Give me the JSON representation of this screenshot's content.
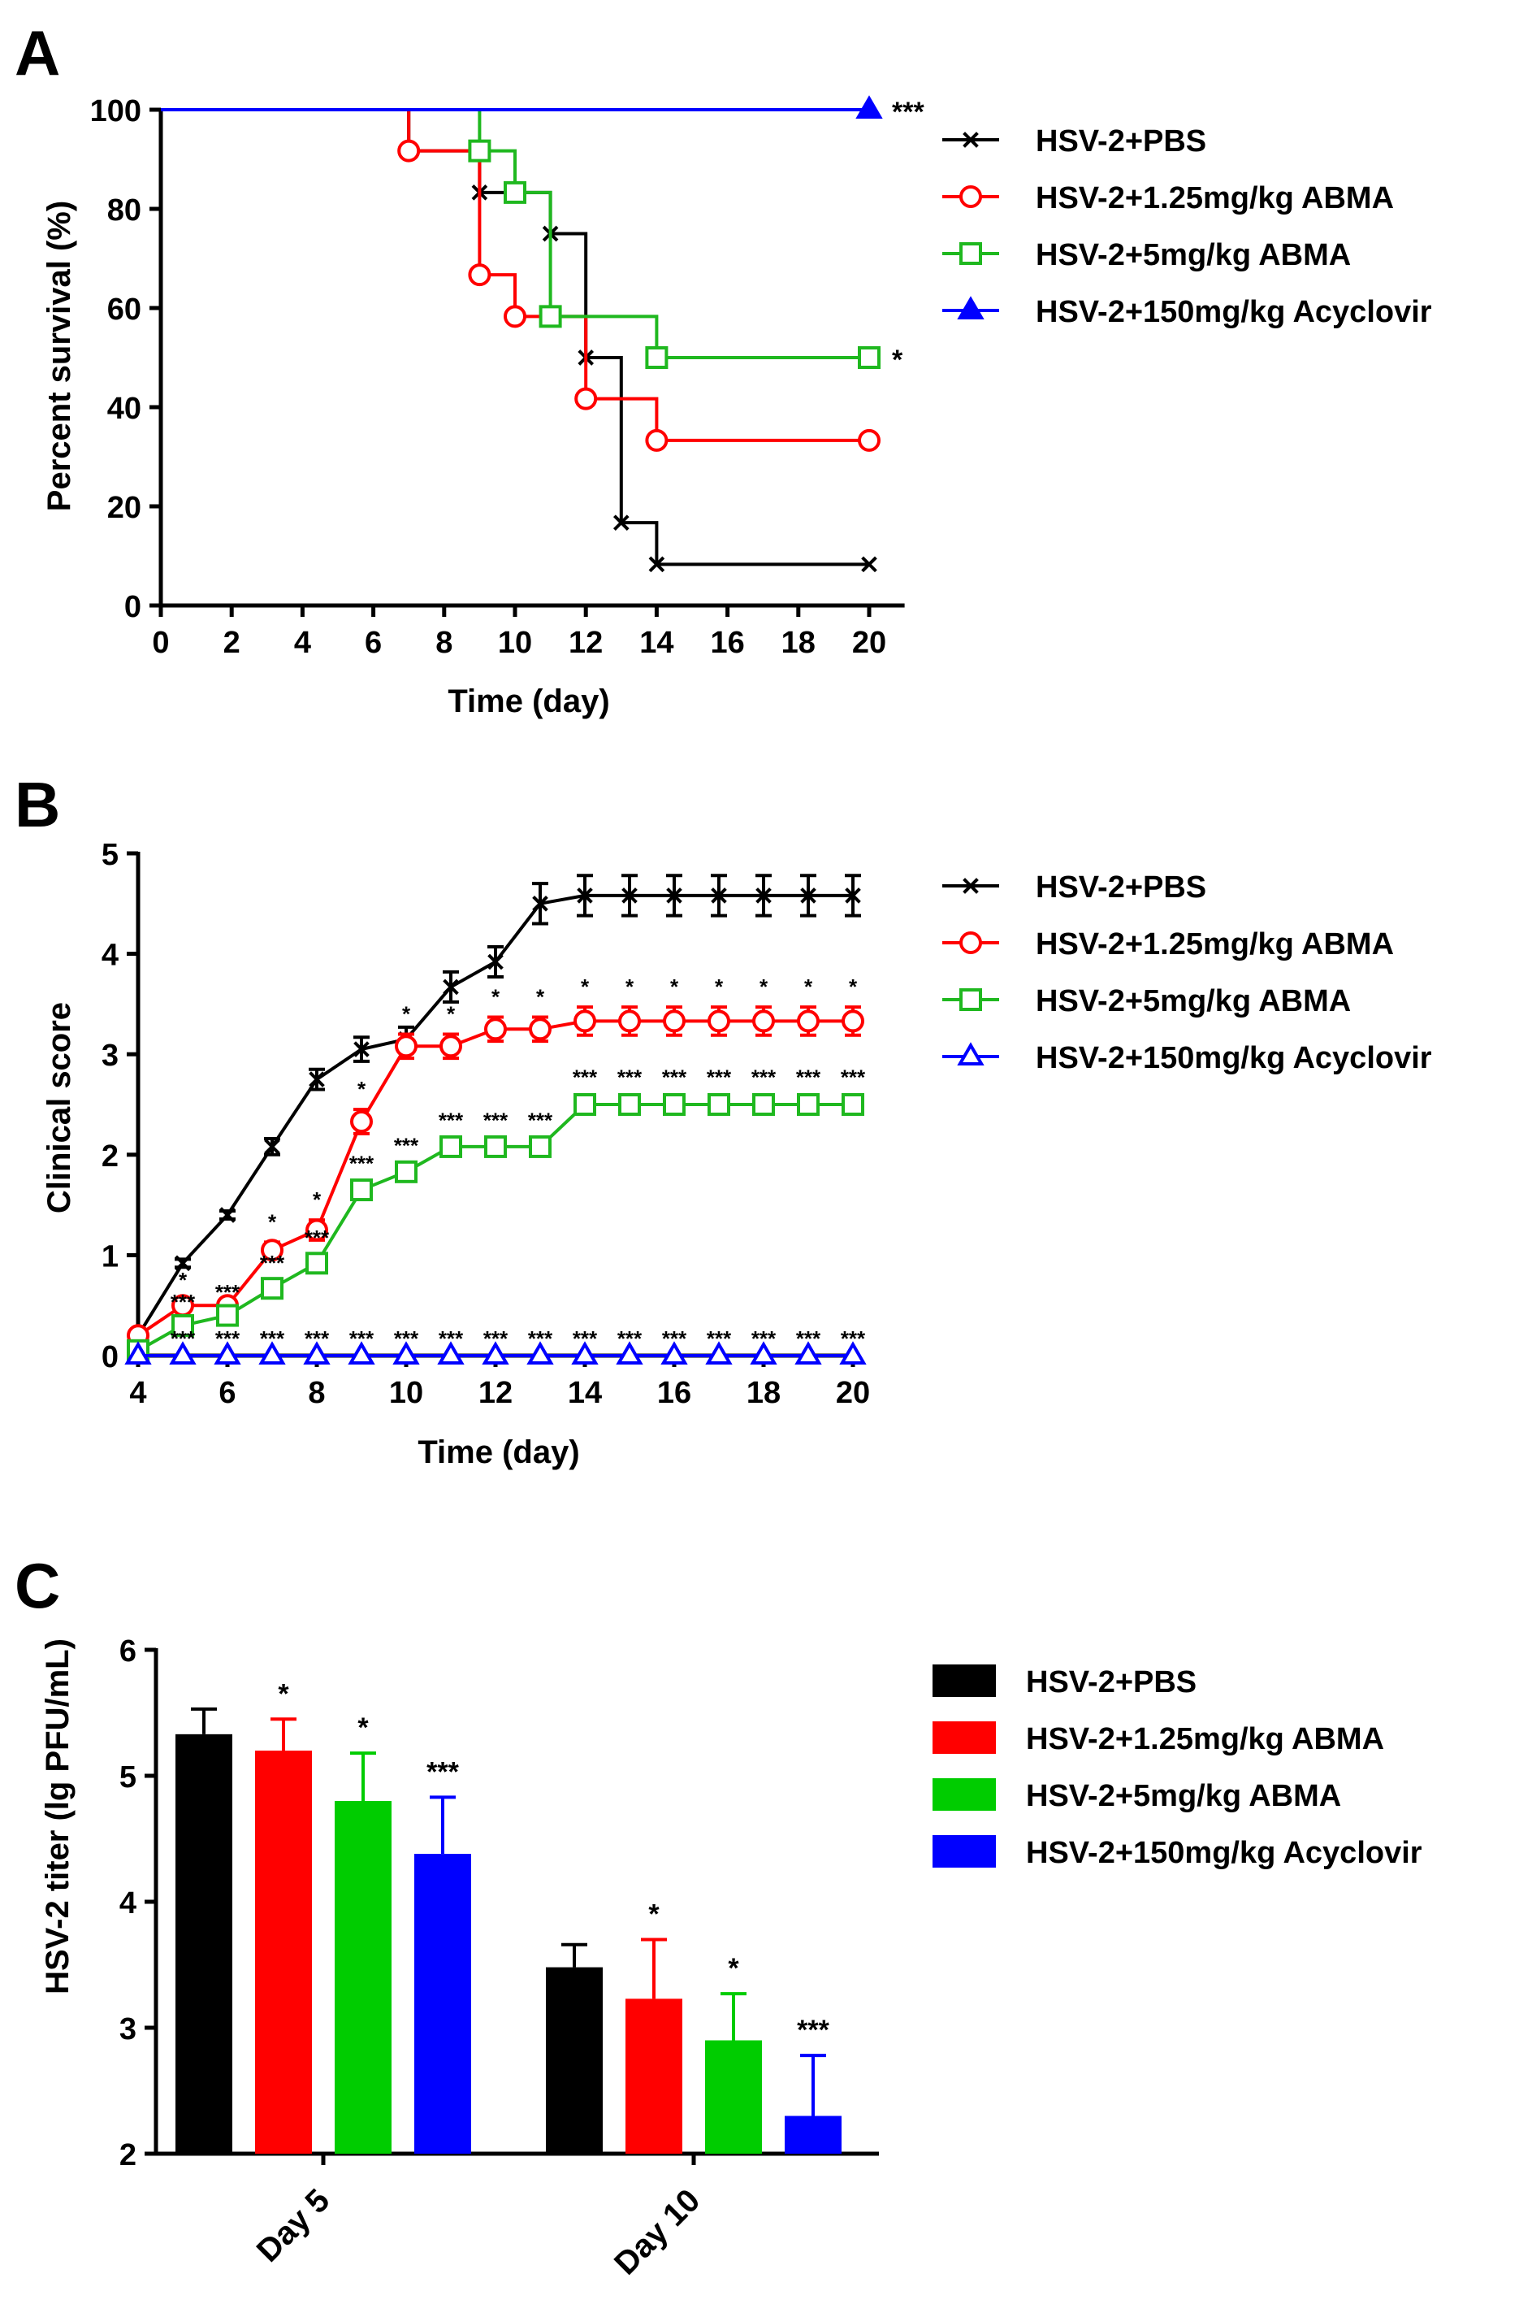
{
  "figure": {
    "panel_labels": [
      "A",
      "B",
      "C"
    ]
  },
  "colors": {
    "pbs": "#000000",
    "abma_low": "#ff0000",
    "abma_high": "#1fb81f",
    "acyclovir": "#0000ff",
    "acyclovir_bar": "#0000ff",
    "abma_high_bar": "#00cc00"
  },
  "chart_data": [
    {
      "panel": "A",
      "type": "line",
      "subtype": "survival-step",
      "xlabel": "Time (day)",
      "ylabel": "Percent survival (%)",
      "xlim": [
        0,
        20
      ],
      "ylim": [
        0,
        100
      ],
      "xticks": [
        "0",
        "2",
        "4",
        "6",
        "8",
        "10",
        "12",
        "14",
        "16",
        "18",
        "20"
      ],
      "yticks": [
        "0",
        "20",
        "40",
        "60",
        "80",
        "100"
      ],
      "legend": [
        "HSV-2+PBS",
        "HSV-2+1.25mg/kg ABMA",
        "HSV-2+5mg/kg ABMA",
        "HSV-2+150mg/kg Acyclovir"
      ],
      "legend_position": "right",
      "series": [
        {
          "name": "HSV-2+PBS",
          "marker": "x",
          "steps": [
            [
              0,
              100
            ],
            [
              7,
              91.7
            ],
            [
              9,
              83.3
            ],
            [
              11,
              75
            ],
            [
              12,
              50
            ],
            [
              13,
              16.7
            ],
            [
              14,
              8.3
            ],
            [
              20,
              8.3
            ]
          ],
          "markers": [
            [
              7,
              91.7
            ],
            [
              9,
              83.3
            ],
            [
              11,
              75
            ],
            [
              12,
              50
            ],
            [
              13,
              16.7
            ],
            [
              14,
              8.3
            ],
            [
              20,
              8.3
            ]
          ],
          "significance": ""
        },
        {
          "name": "HSV-2+1.25mg/kg ABMA",
          "marker": "circle",
          "steps": [
            [
              0,
              100
            ],
            [
              7,
              91.7
            ],
            [
              9,
              66.7
            ],
            [
              10,
              58.3
            ],
            [
              12,
              41.7
            ],
            [
              14,
              33.3
            ],
            [
              20,
              33.3
            ]
          ],
          "markers": [
            [
              7,
              91.7
            ],
            [
              9,
              66.7
            ],
            [
              10,
              58.3
            ],
            [
              12,
              41.7
            ],
            [
              14,
              33.3
            ],
            [
              20,
              33.3
            ]
          ],
          "significance": ""
        },
        {
          "name": "HSV-2+5mg/kg ABMA",
          "marker": "square",
          "steps": [
            [
              0,
              100
            ],
            [
              9,
              91.7
            ],
            [
              10,
              83.3
            ],
            [
              11,
              58.3
            ],
            [
              14,
              50
            ],
            [
              20,
              50
            ]
          ],
          "markers": [
            [
              9,
              91.7
            ],
            [
              10,
              83.3
            ],
            [
              11,
              58.3
            ],
            [
              14,
              50
            ],
            [
              20,
              50
            ]
          ],
          "significance": "*"
        },
        {
          "name": "HSV-2+150mg/kg Acyclovir",
          "marker": "triangle-filled",
          "steps": [
            [
              0,
              100
            ],
            [
              20,
              100
            ]
          ],
          "markers": [
            [
              20,
              100
            ]
          ],
          "significance": "***"
        }
      ]
    },
    {
      "panel": "B",
      "type": "line",
      "xlabel": "Time (day)",
      "ylabel": "Clinical score",
      "xlim": [
        4,
        20
      ],
      "ylim": [
        0,
        5
      ],
      "xticks": [
        "4",
        "6",
        "8",
        "10",
        "12",
        "14",
        "16",
        "18",
        "20"
      ],
      "yticks": [
        "0",
        "1",
        "2",
        "3",
        "4",
        "5"
      ],
      "x": [
        4,
        5,
        6,
        7,
        8,
        9,
        10,
        11,
        12,
        13,
        14,
        15,
        16,
        17,
        18,
        19,
        20
      ],
      "legend": [
        "HSV-2+PBS",
        "HSV-2+1.25mg/kg ABMA",
        "HSV-2+5mg/kg ABMA",
        "HSV-2+150mg/kg Acyclovir"
      ],
      "legend_position": "right",
      "series": [
        {
          "name": "HSV-2+PBS",
          "marker": "x",
          "values": [
            0.2,
            0.92,
            1.4,
            2.08,
            2.75,
            3.05,
            3.15,
            3.67,
            3.92,
            4.5,
            4.58,
            4.58,
            4.58,
            4.58,
            4.58,
            4.58,
            4.58
          ],
          "errors": [
            0,
            0.04,
            0.04,
            0.08,
            0.1,
            0.12,
            0.12,
            0.15,
            0.15,
            0.2,
            0.2,
            0.2,
            0.2,
            0.2,
            0.2,
            0.2,
            0.2
          ],
          "significance": [
            "",
            "",
            "",
            "",
            "",
            "",
            "",
            "",
            "",
            "",
            "",
            "",
            "",
            "",
            "",
            "",
            ""
          ]
        },
        {
          "name": "HSV-2+1.25mg/kg ABMA",
          "marker": "circle",
          "values": [
            0.2,
            0.5,
            0.5,
            1.05,
            1.25,
            2.33,
            3.08,
            3.08,
            3.25,
            3.25,
            3.33,
            3.33,
            3.33,
            3.33,
            3.33,
            3.33,
            3.33
          ],
          "errors": [
            0,
            0.05,
            0.05,
            0.08,
            0.1,
            0.12,
            0.12,
            0.12,
            0.12,
            0.12,
            0.14,
            0.14,
            0.14,
            0.14,
            0.14,
            0.14,
            0.14
          ],
          "significance": [
            "",
            "*",
            "",
            "*",
            "*",
            "*",
            "*",
            "*",
            "*",
            "*",
            "*",
            "*",
            "*",
            "*",
            "*",
            "*",
            "*"
          ]
        },
        {
          "name": "HSV-2+5mg/kg ABMA",
          "marker": "square",
          "values": [
            0.05,
            0.3,
            0.4,
            0.67,
            0.92,
            1.65,
            1.83,
            2.08,
            2.08,
            2.08,
            2.5,
            2.5,
            2.5,
            2.5,
            2.5,
            2.5,
            2.5
          ],
          "errors": [
            0,
            0.03,
            0.03,
            0.05,
            0.05,
            0.06,
            0.06,
            0.06,
            0.06,
            0.06,
            0.07,
            0.07,
            0.07,
            0.07,
            0.07,
            0.07,
            0.07
          ],
          "significance": [
            "",
            "***",
            "***",
            "***",
            "***",
            "***",
            "***",
            "***",
            "***",
            "***",
            "***",
            "***",
            "***",
            "***",
            "***",
            "***",
            "***"
          ]
        },
        {
          "name": "HSV-2+150mg/kg Acyclovir",
          "marker": "triangle-open",
          "values": [
            0,
            0,
            0,
            0,
            0,
            0,
            0,
            0,
            0,
            0,
            0,
            0,
            0,
            0,
            0,
            0,
            0
          ],
          "errors": [
            0,
            0,
            0,
            0,
            0,
            0,
            0,
            0,
            0,
            0,
            0,
            0,
            0,
            0,
            0,
            0,
            0
          ],
          "significance": [
            "",
            "***",
            "***",
            "***",
            "***",
            "***",
            "***",
            "***",
            "***",
            "***",
            "***",
            "***",
            "***",
            "***",
            "***",
            "***",
            "***"
          ]
        }
      ]
    },
    {
      "panel": "C",
      "type": "bar",
      "xlabel": "",
      "ylabel": "HSV-2 titer (lg PFU/mL)",
      "ylim": [
        2,
        6
      ],
      "yticks": [
        "2",
        "3",
        "4",
        "5",
        "6"
      ],
      "categories": [
        "Day 5",
        "Day 10"
      ],
      "legend": [
        "HSV-2+PBS",
        "HSV-2+1.25mg/kg ABMA",
        "HSV-2+5mg/kg ABMA",
        "HSV-2+150mg/kg Acyclovir"
      ],
      "legend_position": "right",
      "series": [
        {
          "name": "HSV-2+PBS",
          "values": [
            5.33,
            3.48
          ],
          "errors": [
            0.2,
            0.18
          ],
          "significance": [
            "",
            ""
          ]
        },
        {
          "name": "HSV-2+1.25mg/kg ABMA",
          "values": [
            5.2,
            3.23
          ],
          "errors": [
            0.25,
            0.47
          ],
          "significance": [
            "*",
            "*"
          ]
        },
        {
          "name": "HSV-2+5mg/kg ABMA",
          "values": [
            4.8,
            2.9
          ],
          "errors": [
            0.38,
            0.37
          ],
          "significance": [
            "*",
            "*"
          ]
        },
        {
          "name": "HSV-2+150mg/kg Acyclovir",
          "values": [
            4.38,
            2.3
          ],
          "errors": [
            0.45,
            0.48
          ],
          "significance": [
            "***",
            "***"
          ]
        }
      ]
    }
  ]
}
